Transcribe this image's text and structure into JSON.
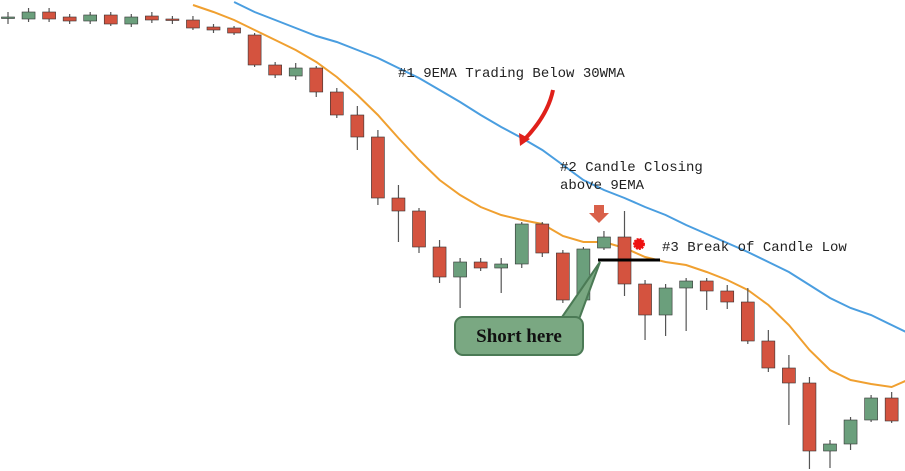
{
  "chart_data": {
    "type": "candlestick",
    "ylim": [
      0,
      471
    ],
    "up_color": "#6b9f7c",
    "down_color": "#d4533f",
    "open": [
      453,
      452,
      459,
      454,
      450,
      456,
      447,
      455,
      452,
      451,
      444,
      443,
      436,
      406,
      395,
      403,
      379,
      356,
      334,
      273,
      260,
      224,
      194,
      209,
      203,
      207,
      247,
      218,
      171,
      223,
      234,
      187,
      156,
      183,
      190,
      180,
      169,
      130,
      103,
      88,
      20,
      27,
      51,
      73,
      50
    ],
    "high": [
      459,
      463,
      463,
      457,
      459,
      459,
      457,
      459,
      455,
      455,
      447,
      445,
      438,
      409,
      408,
      405,
      383,
      365,
      341,
      286,
      263,
      231,
      213,
      213,
      213,
      249,
      249,
      221,
      224,
      240,
      260,
      191,
      187,
      193,
      193,
      186,
      183,
      141,
      116,
      94,
      31,
      54,
      76,
      79,
      99
    ],
    "low": [
      447,
      449,
      449,
      447,
      447,
      445,
      444,
      448,
      447,
      441,
      438,
      436,
      404,
      393,
      391,
      374,
      353,
      321,
      266,
      229,
      218,
      188,
      163,
      200,
      178,
      203,
      214,
      168,
      169,
      221,
      175,
      131,
      135,
      140,
      161,
      162,
      127,
      99,
      46,
      2,
      3,
      21,
      49,
      48,
      48
    ],
    "close": [
      454,
      459,
      452,
      450,
      456,
      447,
      454,
      451,
      451,
      443,
      441,
      438,
      406,
      396,
      403,
      379,
      356,
      334,
      273,
      260,
      224,
      194,
      209,
      203,
      207,
      247,
      218,
      171,
      222,
      234,
      187,
      156,
      183,
      190,
      180,
      169,
      130,
      103,
      88,
      20,
      27,
      51,
      73,
      50,
      94
    ],
    "lines": [
      {
        "color": "#f0a030",
        "values": [
          null,
          null,
          null,
          null,
          null,
          null,
          null,
          null,
          null,
          466,
          459,
          451,
          441,
          431,
          421,
          409,
          394,
          376,
          356,
          333,
          311,
          291,
          276,
          264,
          256,
          251,
          247,
          235,
          229,
          229,
          223,
          214,
          209,
          206,
          199,
          191,
          181,
          166,
          146,
          121,
          101,
          91,
          87,
          84,
          93
        ]
      },
      {
        "color": "#4a9ee0",
        "values": [
          null,
          null,
          null,
          null,
          null,
          null,
          null,
          null,
          null,
          null,
          null,
          469,
          459,
          451,
          443,
          435,
          429,
          421,
          413,
          403,
          393,
          381,
          369,
          356,
          344,
          333,
          321,
          306,
          291,
          281,
          273,
          264,
          256,
          246,
          237,
          228,
          219,
          209,
          199,
          186,
          173,
          163,
          156,
          146,
          136
        ]
      }
    ],
    "annotations": [
      "#1 9EMA Trading Below 30WMA",
      "#2 Candle Closing",
      "above 9EMA",
      "#3 Break of Candle Low",
      "Short here"
    ]
  }
}
